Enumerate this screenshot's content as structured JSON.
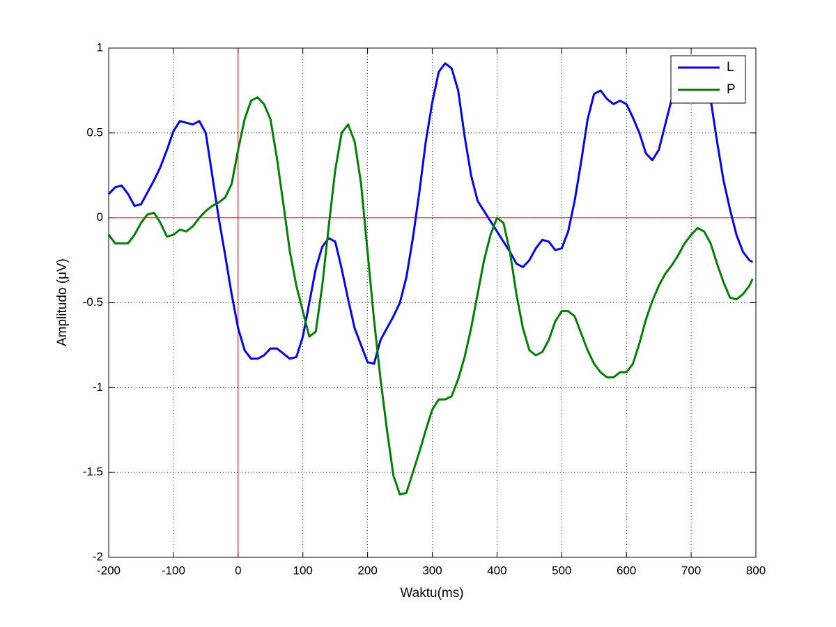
{
  "chart_data": {
    "type": "line",
    "xlabel": "Waktu(ms)",
    "ylabel": "Amplitudo (μV)",
    "x": [
      -200,
      -190,
      -180,
      -170,
      -160,
      -150,
      -140,
      -130,
      -120,
      -110,
      -100,
      -90,
      -80,
      -70,
      -60,
      -50,
      -40,
      -30,
      -20,
      -10,
      0,
      10,
      20,
      30,
      40,
      50,
      60,
      70,
      80,
      90,
      100,
      110,
      120,
      130,
      140,
      150,
      160,
      170,
      180,
      190,
      200,
      210,
      220,
      230,
      240,
      250,
      260,
      270,
      280,
      290,
      300,
      310,
      320,
      330,
      340,
      350,
      360,
      370,
      380,
      390,
      400,
      410,
      420,
      430,
      440,
      450,
      460,
      470,
      480,
      490,
      500,
      510,
      520,
      530,
      540,
      550,
      560,
      570,
      580,
      590,
      600,
      610,
      620,
      630,
      640,
      650,
      660,
      670,
      680,
      690,
      700,
      710,
      720,
      730,
      740,
      750,
      760,
      770,
      780,
      790,
      795
    ],
    "series": [
      {
        "name": "L",
        "color": "#0000ff",
        "values": [
          0.14,
          0.18,
          0.19,
          0.14,
          0.07,
          0.08,
          0.15,
          0.22,
          0.3,
          0.4,
          0.51,
          0.57,
          0.56,
          0.55,
          0.57,
          0.5,
          0.25,
          0.0,
          -0.22,
          -0.45,
          -0.65,
          -0.78,
          -0.83,
          -0.83,
          -0.81,
          -0.77,
          -0.77,
          -0.8,
          -0.83,
          -0.82,
          -0.7,
          -0.5,
          -0.3,
          -0.17,
          -0.12,
          -0.14,
          -0.3,
          -0.48,
          -0.65,
          -0.75,
          -0.85,
          -0.86,
          -0.72,
          -0.65,
          -0.58,
          -0.5,
          -0.35,
          -0.12,
          0.15,
          0.45,
          0.68,
          0.86,
          0.91,
          0.88,
          0.75,
          0.48,
          0.25,
          0.1,
          0.04,
          -0.02,
          -0.08,
          -0.14,
          -0.2,
          -0.27,
          -0.29,
          -0.25,
          -0.18,
          -0.13,
          -0.14,
          -0.19,
          -0.18,
          -0.08,
          0.1,
          0.33,
          0.58,
          0.73,
          0.75,
          0.7,
          0.67,
          0.69,
          0.67,
          0.59,
          0.5,
          0.38,
          0.34,
          0.4,
          0.55,
          0.7,
          0.8,
          0.85,
          0.86,
          0.85,
          0.8,
          0.7,
          0.45,
          0.22,
          0.05,
          -0.1,
          -0.2,
          -0.25,
          -0.26
        ]
      },
      {
        "name": "P",
        "color": "#008000",
        "values": [
          -0.1,
          -0.15,
          -0.15,
          -0.15,
          -0.1,
          -0.03,
          0.02,
          0.03,
          -0.03,
          -0.11,
          -0.1,
          -0.07,
          -0.08,
          -0.05,
          0.0,
          0.04,
          0.07,
          0.09,
          0.12,
          0.2,
          0.4,
          0.58,
          0.69,
          0.71,
          0.67,
          0.58,
          0.35,
          0.08,
          -0.2,
          -0.4,
          -0.55,
          -0.7,
          -0.67,
          -0.4,
          -0.05,
          0.28,
          0.5,
          0.55,
          0.45,
          0.2,
          -0.2,
          -0.6,
          -0.95,
          -1.25,
          -1.52,
          -1.63,
          -1.62,
          -1.5,
          -1.38,
          -1.25,
          -1.13,
          -1.07,
          -1.07,
          -1.05,
          -0.95,
          -0.82,
          -0.65,
          -0.45,
          -0.25,
          -0.1,
          0.0,
          -0.03,
          -0.2,
          -0.45,
          -0.65,
          -0.78,
          -0.81,
          -0.79,
          -0.72,
          -0.61,
          -0.55,
          -0.55,
          -0.58,
          -0.68,
          -0.78,
          -0.86,
          -0.91,
          -0.94,
          -0.94,
          -0.91,
          -0.91,
          -0.86,
          -0.74,
          -0.6,
          -0.49,
          -0.4,
          -0.33,
          -0.28,
          -0.22,
          -0.15,
          -0.1,
          -0.06,
          -0.08,
          -0.15,
          -0.27,
          -0.38,
          -0.47,
          -0.48,
          -0.45,
          -0.4,
          -0.36
        ]
      }
    ],
    "xlim": [
      -200,
      800
    ],
    "xticks": [
      -200,
      -100,
      0,
      100,
      200,
      300,
      400,
      500,
      600,
      700,
      800
    ],
    "ylim": [
      -2,
      1
    ],
    "yticks": [
      -2,
      -1.5,
      -1,
      -0.5,
      0,
      0.5,
      1
    ],
    "grid": true,
    "legend": "northeast",
    "reference_lines": {
      "x": 0,
      "y": 0,
      "color": "#ff0000"
    }
  }
}
